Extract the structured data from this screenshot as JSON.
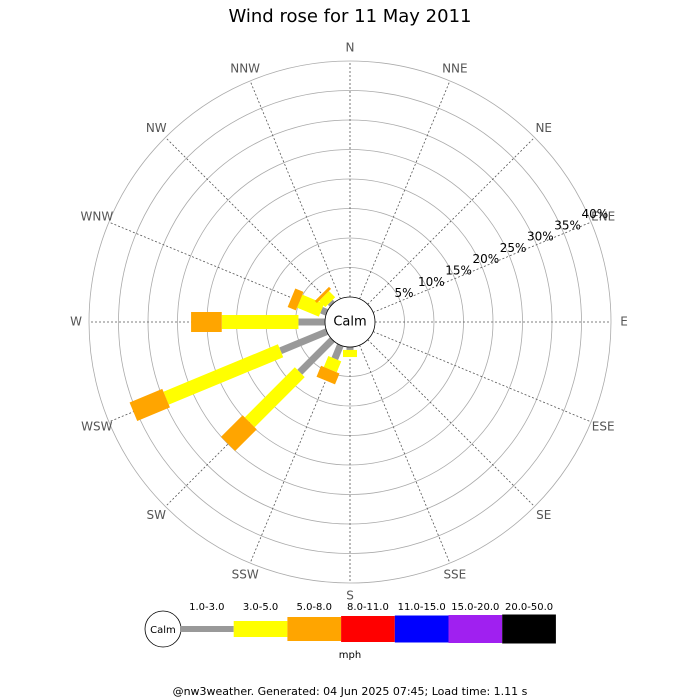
{
  "chart_data": {
    "type": "windrose",
    "title": "Wind rose for 11 May 2011",
    "calm_label": "Calm",
    "unit_label": "mph",
    "footer": "@nw3weather. Generated: 04 Jun 2025 07:45; Load time: 1.11 s",
    "directions": [
      "N",
      "NNE",
      "NE",
      "ENE",
      "E",
      "ESE",
      "SE",
      "SSE",
      "S",
      "SSW",
      "SW",
      "WSW",
      "W",
      "WNW",
      "NW",
      "NNW"
    ],
    "rlim": [
      0,
      40
    ],
    "rticks": [
      {
        "value": 5,
        "label": "5%"
      },
      {
        "value": 10,
        "label": "10%"
      },
      {
        "value": 15,
        "label": "15%"
      },
      {
        "value": 20,
        "label": "20%"
      },
      {
        "value": 25,
        "label": "25%"
      },
      {
        "value": 30,
        "label": "30%"
      },
      {
        "value": 35,
        "label": "35%"
      },
      {
        "value": 40,
        "label": "40%"
      }
    ],
    "series": [
      {
        "name": "1.0-3.0",
        "color": "#999999",
        "values": [
          0,
          0,
          0,
          0,
          0,
          0,
          0,
          0,
          0.5,
          2.5,
          7.8,
          8.5,
          4.5,
          1,
          0.5,
          0
        ]
      },
      {
        "name": "3.0-5.0",
        "color": "#ffff00",
        "values": [
          0,
          0,
          0,
          0,
          0,
          0,
          0,
          0,
          1.2,
          2,
          12,
          21,
          13,
          4,
          1.5,
          0
        ]
      },
      {
        "name": "5.0-8.0",
        "color": "#ffa500",
        "values": [
          0,
          0,
          0,
          0,
          0,
          0,
          0,
          0,
          0,
          2,
          5.2,
          6,
          5.2,
          1.5,
          0.5,
          0
        ]
      },
      {
        "name": "8.0-11.0",
        "color": "#ff0000",
        "values": [
          0,
          0,
          0,
          0,
          0,
          0,
          0,
          0,
          0,
          0,
          0,
          0,
          0,
          0,
          0,
          0
        ]
      },
      {
        "name": "11.0-15.0",
        "color": "#0000ff",
        "values": [
          0,
          0,
          0,
          0,
          0,
          0,
          0,
          0,
          0,
          0,
          0,
          0,
          0,
          0,
          0,
          0
        ]
      },
      {
        "name": "15.0-20.0",
        "color": "#a020f0",
        "values": [
          0,
          0,
          0,
          0,
          0,
          0,
          0,
          0,
          0,
          0,
          0,
          0,
          0,
          0,
          0,
          0
        ]
      },
      {
        "name": "20.0-50.0",
        "color": "#000000",
        "values": [
          0,
          0,
          0,
          0,
          0,
          0,
          0,
          0,
          0,
          0,
          0,
          0,
          0,
          0,
          0,
          0
        ]
      }
    ]
  }
}
